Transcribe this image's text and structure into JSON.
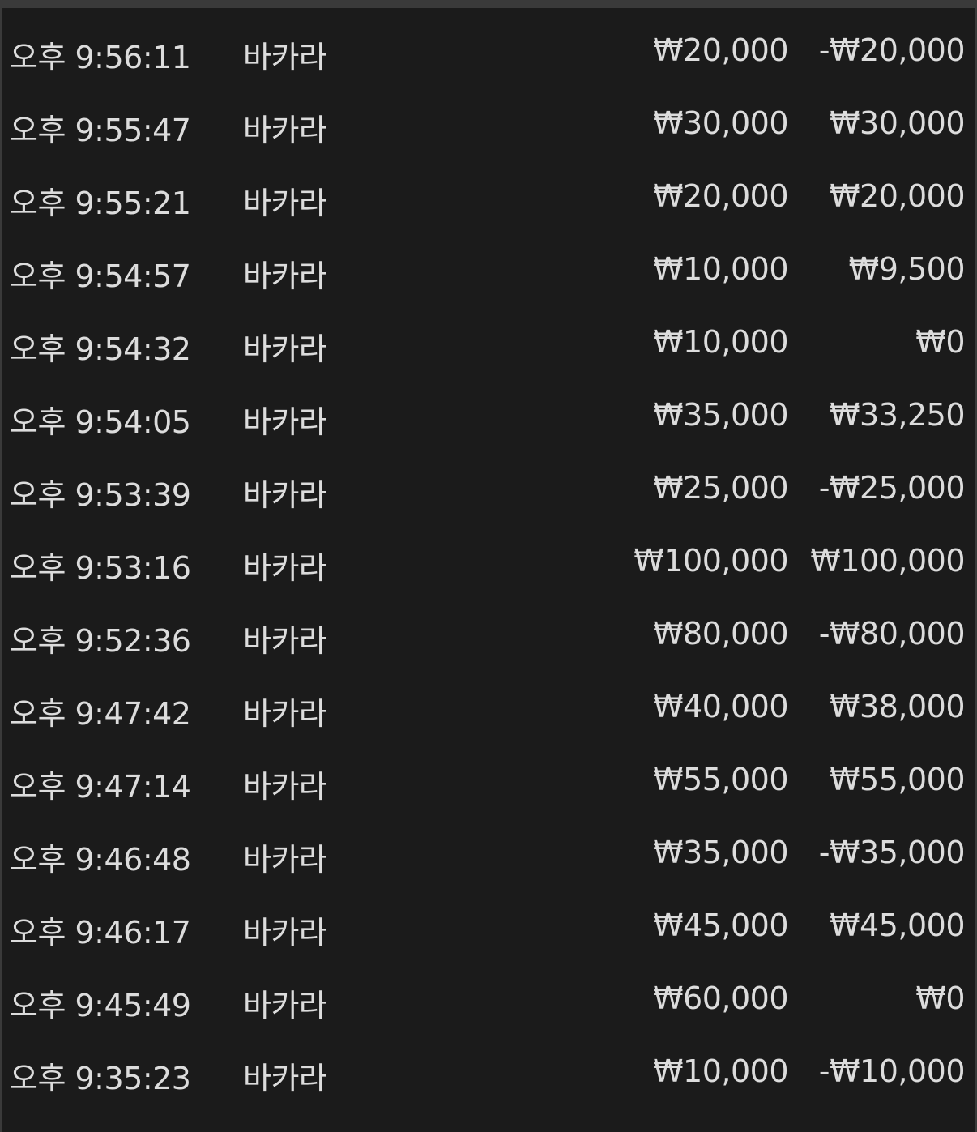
{
  "rows": [
    {
      "time": "오후 9:56:11",
      "game": "바카라",
      "bet": "₩20,000",
      "result": "-₩20,000"
    },
    {
      "time": "오후 9:55:47",
      "game": "바카라",
      "bet": "₩30,000",
      "result": "₩30,000"
    },
    {
      "time": "오후 9:55:21",
      "game": "바카라",
      "bet": "₩20,000",
      "result": "₩20,000"
    },
    {
      "time": "오후 9:54:57",
      "game": "바카라",
      "bet": "₩10,000",
      "result": "₩9,500"
    },
    {
      "time": "오후 9:54:32",
      "game": "바카라",
      "bet": "₩10,000",
      "result": "₩0"
    },
    {
      "time": "오후 9:54:05",
      "game": "바카라",
      "bet": "₩35,000",
      "result": "₩33,250"
    },
    {
      "time": "오후 9:53:39",
      "game": "바카라",
      "bet": "₩25,000",
      "result": "-₩25,000"
    },
    {
      "time": "오후 9:53:16",
      "game": "바카라",
      "bet": "₩100,000",
      "result": "₩100,000"
    },
    {
      "time": "오후 9:52:36",
      "game": "바카라",
      "bet": "₩80,000",
      "result": "-₩80,000"
    },
    {
      "time": "오후 9:47:42",
      "game": "바카라",
      "bet": "₩40,000",
      "result": "₩38,000"
    },
    {
      "time": "오후 9:47:14",
      "game": "바카라",
      "bet": "₩55,000",
      "result": "₩55,000"
    },
    {
      "time": "오후 9:46:48",
      "game": "바카라",
      "bet": "₩35,000",
      "result": "-₩35,000"
    },
    {
      "time": "오후 9:46:17",
      "game": "바카라",
      "bet": "₩45,000",
      "result": "₩45,000"
    },
    {
      "time": "오후 9:45:49",
      "game": "바카라",
      "bet": "₩60,000",
      "result": "₩0"
    },
    {
      "time": "오후 9:35:23",
      "game": "바카라",
      "bet": "₩10,000",
      "result": "-₩10,000"
    }
  ]
}
